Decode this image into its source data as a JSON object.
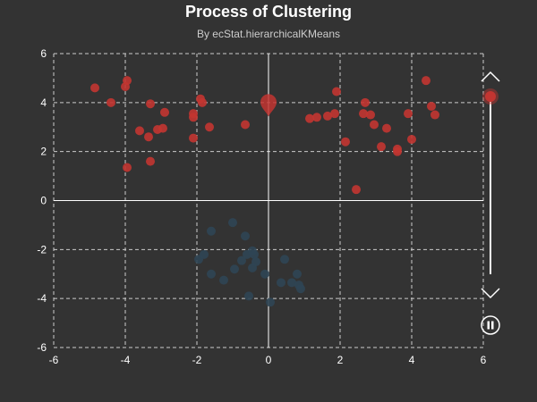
{
  "chart_data": {
    "type": "scatter",
    "title": "Process of Clustering",
    "subtitle": "By ecStat.hierarchicalKMeans",
    "xlim": [
      -6,
      6
    ],
    "ylim": [
      -6,
      6
    ],
    "xticks": [
      -6,
      -4,
      -2,
      0,
      2,
      4,
      6
    ],
    "yticks": [
      -6,
      -4,
      -2,
      0,
      2,
      4,
      6
    ],
    "grid": true,
    "grid_style": "dashed",
    "series": [
      {
        "color": "#c23531",
        "points": [
          [
            -4.85,
            4.6
          ],
          [
            -4.4,
            4.0
          ],
          [
            -4.0,
            4.65
          ],
          [
            -3.95,
            4.9
          ],
          [
            -3.95,
            1.35
          ],
          [
            -3.6,
            2.85
          ],
          [
            -3.35,
            2.6
          ],
          [
            -3.3,
            3.95
          ],
          [
            -3.3,
            1.6
          ],
          [
            -3.1,
            2.9
          ],
          [
            -2.95,
            2.95
          ],
          [
            -2.9,
            3.6
          ],
          [
            -2.1,
            3.55
          ],
          [
            -2.1,
            3.4
          ],
          [
            -2.1,
            2.55
          ],
          [
            -1.9,
            4.15
          ],
          [
            -1.85,
            4.0
          ],
          [
            -1.65,
            3.0
          ],
          [
            -0.65,
            3.1
          ],
          [
            1.15,
            3.35
          ],
          [
            1.35,
            3.4
          ],
          [
            1.65,
            3.45
          ],
          [
            1.85,
            3.55
          ],
          [
            1.9,
            4.45
          ],
          [
            2.15,
            2.4
          ],
          [
            2.45,
            0.45
          ],
          [
            2.65,
            3.55
          ],
          [
            2.7,
            4.0
          ],
          [
            2.85,
            3.5
          ],
          [
            2.95,
            3.1
          ],
          [
            3.15,
            2.2
          ],
          [
            3.3,
            2.95
          ],
          [
            3.6,
            2.1
          ],
          [
            3.6,
            2.0
          ],
          [
            3.9,
            3.55
          ],
          [
            4.0,
            2.5
          ],
          [
            4.4,
            4.9
          ],
          [
            4.55,
            3.85
          ],
          [
            4.65,
            3.5
          ]
        ]
      },
      {
        "color": "#2f4554",
        "points": [
          [
            -1.95,
            -2.4
          ],
          [
            -1.8,
            -2.2
          ],
          [
            -1.6,
            -1.25
          ],
          [
            -1.6,
            -3.0
          ],
          [
            -1.25,
            -3.25
          ],
          [
            -1.0,
            -0.9
          ],
          [
            -0.95,
            -2.8
          ],
          [
            -0.75,
            -2.45
          ],
          [
            -0.65,
            -1.45
          ],
          [
            -0.6,
            -2.2
          ],
          [
            -0.55,
            -3.9
          ],
          [
            -0.45,
            -2.05
          ],
          [
            -0.45,
            -2.75
          ],
          [
            -0.4,
            -2.2
          ],
          [
            -0.35,
            -2.5
          ],
          [
            -0.1,
            -3.0
          ],
          [
            0.05,
            -4.15
          ],
          [
            0.35,
            -3.35
          ],
          [
            0.45,
            -2.4
          ],
          [
            0.65,
            -3.35
          ],
          [
            0.8,
            -3.0
          ],
          [
            0.85,
            -3.45
          ],
          [
            0.9,
            -3.6
          ]
        ]
      }
    ],
    "centers": [
      {
        "x": 0.0,
        "y": 3.8,
        "color": "#c23531",
        "symbol": "pin"
      }
    ],
    "timeline": {
      "orientation": "vertical",
      "current_fraction": 0.0,
      "state": "playing",
      "controls": [
        "prev-arrow-icon",
        "next-arrow-icon",
        "pause-icon"
      ]
    }
  }
}
